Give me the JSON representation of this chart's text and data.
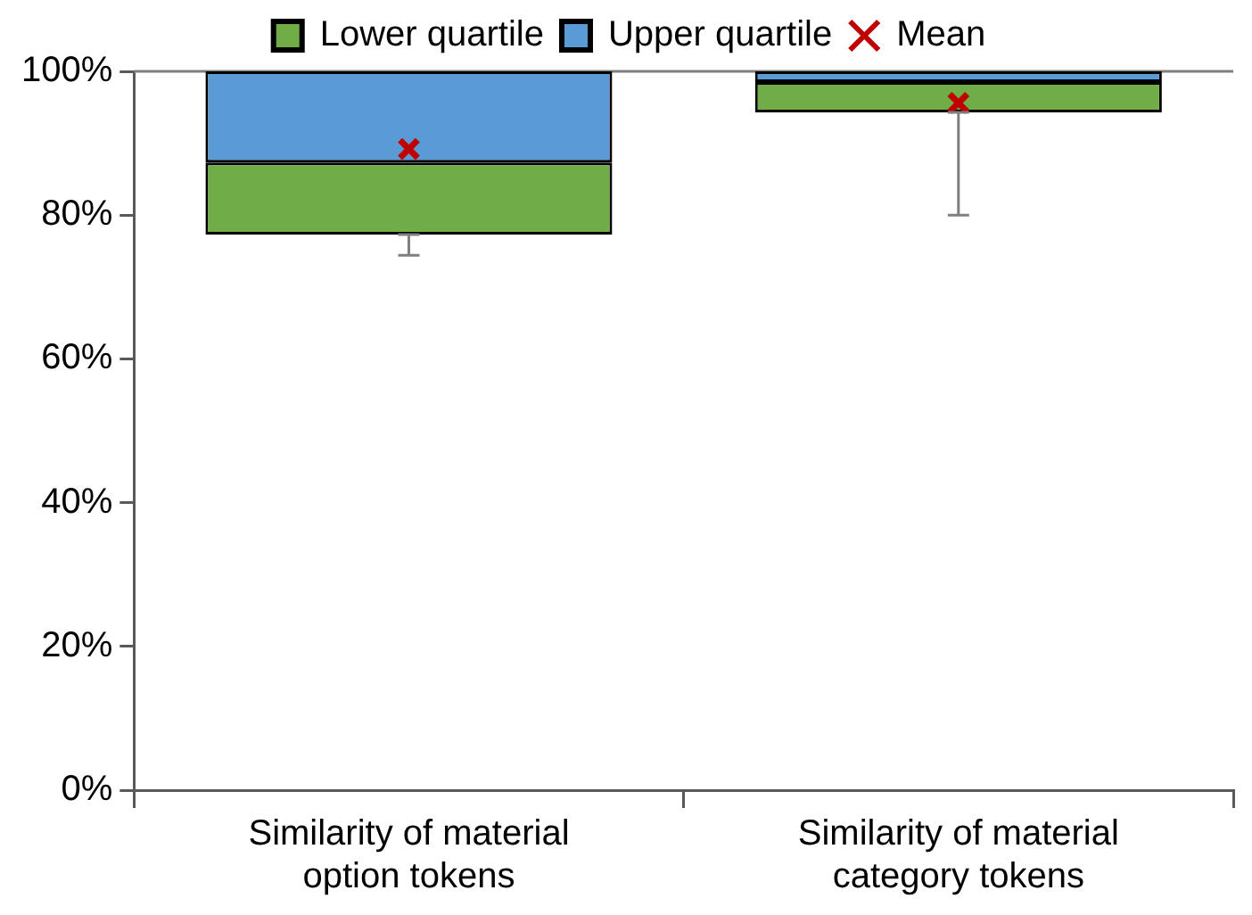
{
  "chart_data": {
    "type": "bar",
    "categories": [
      "Similarity of material option tokens",
      "Similarity of material category tokens"
    ],
    "series": [
      {
        "name": "Lower quartile",
        "color": "#70ad47",
        "base": [
          77.3,
          94.3
        ],
        "values": [
          10,
          4.2
        ],
        "errors": [
          [
            74.4,
            77.3
          ],
          [
            80,
            94.3
          ]
        ]
      },
      {
        "name": "Upper quartile",
        "color": "#5b9bd5",
        "base": [
          87.3,
          98.5
        ],
        "values": [
          12.7,
          1.5
        ]
      },
      {
        "name": "Mean",
        "type": "scatter",
        "color": "#c00000",
        "marker": "cross",
        "x": [
          "Similarity of material option tokens",
          "Similarity of material category tokens"
        ],
        "values": [
          89.2,
          95.6
        ]
      }
    ],
    "ylim": [
      0,
      100
    ],
    "yticks": [
      {
        "value": 0,
        "label": "0%"
      },
      {
        "value": 20,
        "label": "20%"
      },
      {
        "value": 40,
        "label": "40%"
      },
      {
        "value": 60,
        "label": "60%"
      },
      {
        "value": 80,
        "label": "80%"
      },
      {
        "value": 100,
        "label": "100%"
      }
    ],
    "grid": false,
    "legend": "top"
  }
}
